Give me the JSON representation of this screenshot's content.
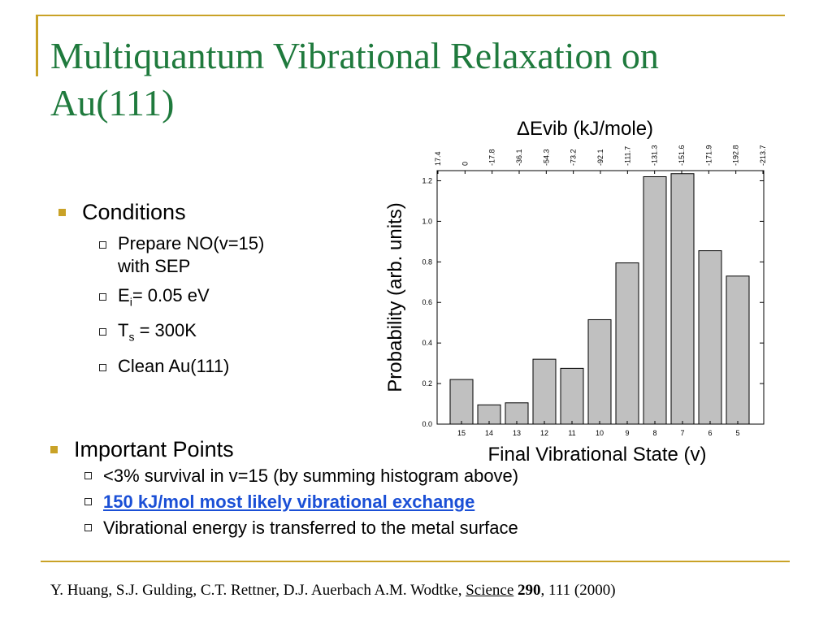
{
  "slide": {
    "title": "Multiquantum Vibrational Relaxation on Au(111)",
    "conditions": {
      "heading": "Conditions",
      "items": [
        {
          "main": "Prepare NO(v=15)",
          "cont": "with SEP"
        },
        {
          "main": "E",
          "sub": "i",
          "rest": "= 0.05 eV"
        },
        {
          "main": "T",
          "sub": "s",
          "rest": " = 300K"
        },
        {
          "main": "Clean Au(111)"
        }
      ]
    },
    "important": {
      "heading": "Important Points",
      "items": [
        "<3% survival in v=15 (by summing histogram above)",
        "150 kJ/mol most likely vibrational exchange",
        "Vibrational energy is transferred to the metal surface"
      ]
    },
    "footer": {
      "authors": "Y. Huang, S.J. Gulding, C.T. Rettner, D.J. Auerbach A.M. Wodtke,",
      "journal": "Science",
      "volume": "290",
      "pages": ", 111 (2000)"
    }
  },
  "colors": {
    "title": "#1f7a3d",
    "accent": "#c9a227",
    "link": "#1a4fd6",
    "bar_fill": "#c0c0c0"
  },
  "chart_data": {
    "type": "bar",
    "categories": [
      "15",
      "14",
      "13",
      "12",
      "11",
      "10",
      "9",
      "8",
      "7",
      "6",
      "5"
    ],
    "values": [
      0.22,
      0.095,
      0.105,
      0.32,
      0.275,
      0.515,
      0.795,
      1.22,
      1.235,
      0.855,
      0.73
    ],
    "top_axis_label": "ΔEvib (kJ/mole)",
    "top_ticks": [
      "17.4",
      "0",
      "-17.8",
      "-36.1",
      "-54.3",
      "-73.2",
      "-92.1",
      "-111.7",
      "-131.3",
      "-151.6",
      "-171.9",
      "-192.8",
      "-213.7"
    ],
    "y_ticks": [
      "0.0",
      "0.2",
      "0.4",
      "0.6",
      "0.8",
      "1.0",
      "1.2"
    ],
    "xlabel": "Final Vibrational State (v)",
    "ylabel": "Probability (arb. units)",
    "ylim": [
      0,
      1.25
    ]
  }
}
